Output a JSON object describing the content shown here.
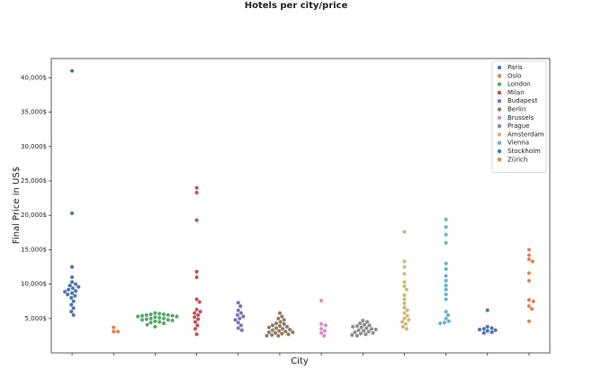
{
  "chart_data": {
    "type": "swarm",
    "title": "Hotels per city/price",
    "xlabel": "City",
    "ylabel": "Final Price in US$",
    "ylim": [
      0,
      42800
    ],
    "yticks": [
      {
        "value": 5000,
        "label": "5,000$"
      },
      {
        "value": 10000,
        "label": "10,000$"
      },
      {
        "value": 15000,
        "label": "15,000$"
      },
      {
        "value": 20000,
        "label": "20,000$"
      },
      {
        "value": 25000,
        "label": "25,000$"
      },
      {
        "value": 30000,
        "label": "30,000$"
      },
      {
        "value": 35000,
        "label": "35,000$"
      },
      {
        "value": 40000,
        "label": "40,000$"
      }
    ],
    "legend": "upper right",
    "series": [
      {
        "name": "Paris",
        "color": "#4c72b0",
        "values": [
          41000,
          20300,
          12500,
          11000,
          10300,
          10000,
          9800,
          9600,
          9400,
          9200,
          9000,
          8900,
          8700,
          8500,
          8300,
          8000,
          7500,
          7000,
          6500,
          6000,
          5500
        ]
      },
      {
        "name": "Oslo",
        "color": "#dd8452",
        "values": [
          3700,
          3100,
          3100
        ]
      },
      {
        "name": "London",
        "color": "#55a868",
        "values": [
          5800,
          5700,
          5600,
          5600,
          5500,
          5500,
          5400,
          5400,
          5300,
          5300,
          5200,
          5100,
          5000,
          5000,
          4900,
          4800,
          4800,
          4700,
          4600,
          4500,
          4400,
          4300,
          4100,
          3800
        ]
      },
      {
        "name": "Milan",
        "color": "#c44e52",
        "values": [
          24000,
          23300,
          19300,
          11800,
          11000,
          7800,
          7400,
          6300,
          6000,
          5800,
          5500,
          5200,
          4900,
          4500,
          4000,
          3500,
          2700
        ]
      },
      {
        "name": "Budapest",
        "color": "#8172b3",
        "values": [
          7300,
          6800,
          6200,
          5800,
          5500,
          5300,
          5000,
          4800,
          4400,
          4000,
          3600,
          3300
        ]
      },
      {
        "name": "Berlin",
        "color": "#937860",
        "values": [
          5800,
          5300,
          5000,
          4800,
          4500,
          4300,
          4200,
          4000,
          3900,
          3800,
          3700,
          3600,
          3500,
          3400,
          3300,
          3200,
          3100,
          3000,
          3000,
          2900,
          2800,
          2700,
          2600,
          2500,
          2500
        ]
      },
      {
        "name": "Brussels",
        "color": "#da8bc3",
        "values": [
          7600,
          4200,
          4000,
          3500,
          3200,
          2900,
          2500
        ]
      },
      {
        "name": "Prague",
        "color": "#8c8c8c",
        "values": [
          4700,
          4500,
          4300,
          4100,
          4000,
          3900,
          3800,
          3700,
          3600,
          3500,
          3400,
          3300,
          3200,
          3100,
          3000,
          2900,
          2800,
          2700,
          2600,
          2500
        ]
      },
      {
        "name": "Amsterdam",
        "color": "#ccb974",
        "values": [
          17600,
          13300,
          12500,
          11500,
          10300,
          9700,
          9200,
          8400,
          7800,
          7200,
          6600,
          6200,
          5800,
          5400,
          5000,
          4800,
          4500,
          4200,
          3800,
          3500
        ]
      },
      {
        "name": "Vienna",
        "color": "#64b5cd",
        "values": [
          19400,
          18300,
          17200,
          16000,
          13000,
          12200,
          11200,
          10500,
          9800,
          9200,
          8500,
          7800,
          6000,
          5500,
          5000,
          4600,
          4400,
          4300
        ]
      },
      {
        "name": "Stockholm",
        "color": "#4c72b0",
        "values": [
          6200,
          3800,
          3600,
          3500,
          3400,
          3300,
          3200,
          3000,
          2900
        ]
      },
      {
        "name": "Zürich",
        "color": "#dd8452",
        "values": [
          15000,
          14200,
          13600,
          13300,
          11600,
          10500,
          7700,
          7500,
          6800,
          6400,
          4600
        ]
      }
    ]
  }
}
